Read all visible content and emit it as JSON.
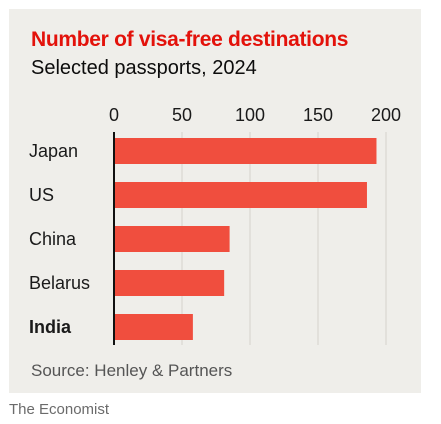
{
  "chart_data": {
    "type": "bar",
    "orientation": "horizontal",
    "title": "Number of visa-free destinations",
    "subtitle": "Selected passports, 2024",
    "categories": [
      "Japan",
      "US",
      "China",
      "Belarus",
      "India"
    ],
    "highlighted_category": "India",
    "values": [
      193,
      186,
      85,
      81,
      58
    ],
    "xlim": [
      0,
      200
    ],
    "xticks": [
      "0",
      "50",
      "100",
      "150",
      "200"
    ],
    "xaxis_position": "top",
    "grid": true,
    "bar_color": "#f04e3e",
    "source": "Source: Henley & Partners"
  },
  "footer": {
    "brand": "The Economist"
  },
  "colors": {
    "title": "#e3120b",
    "background": "#efeeea",
    "grid": "#d4d2cc",
    "bar": "#f04e3e"
  }
}
